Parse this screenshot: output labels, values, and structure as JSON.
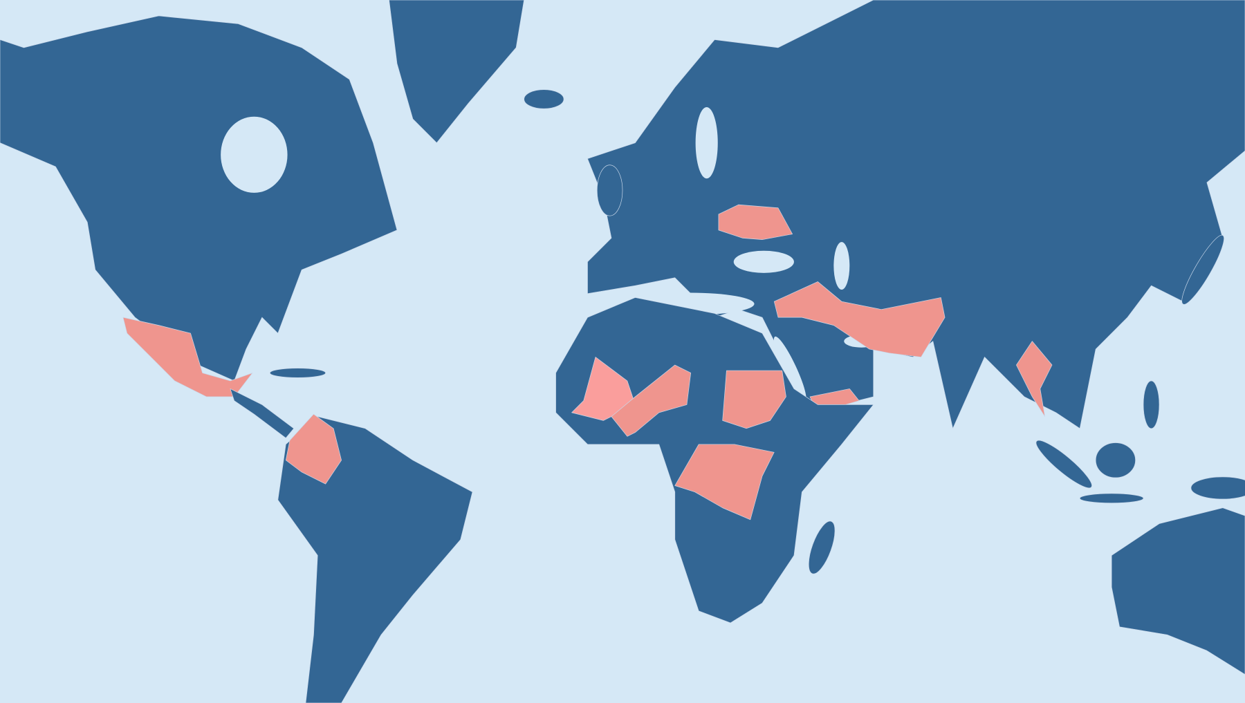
{
  "map": {
    "colors": {
      "ocean": "#d5e8f6",
      "land": "#336694",
      "highlight": "#ef958e",
      "highlight_light": "#fa9e9c",
      "border": "#c9d8ea"
    }
  }
}
